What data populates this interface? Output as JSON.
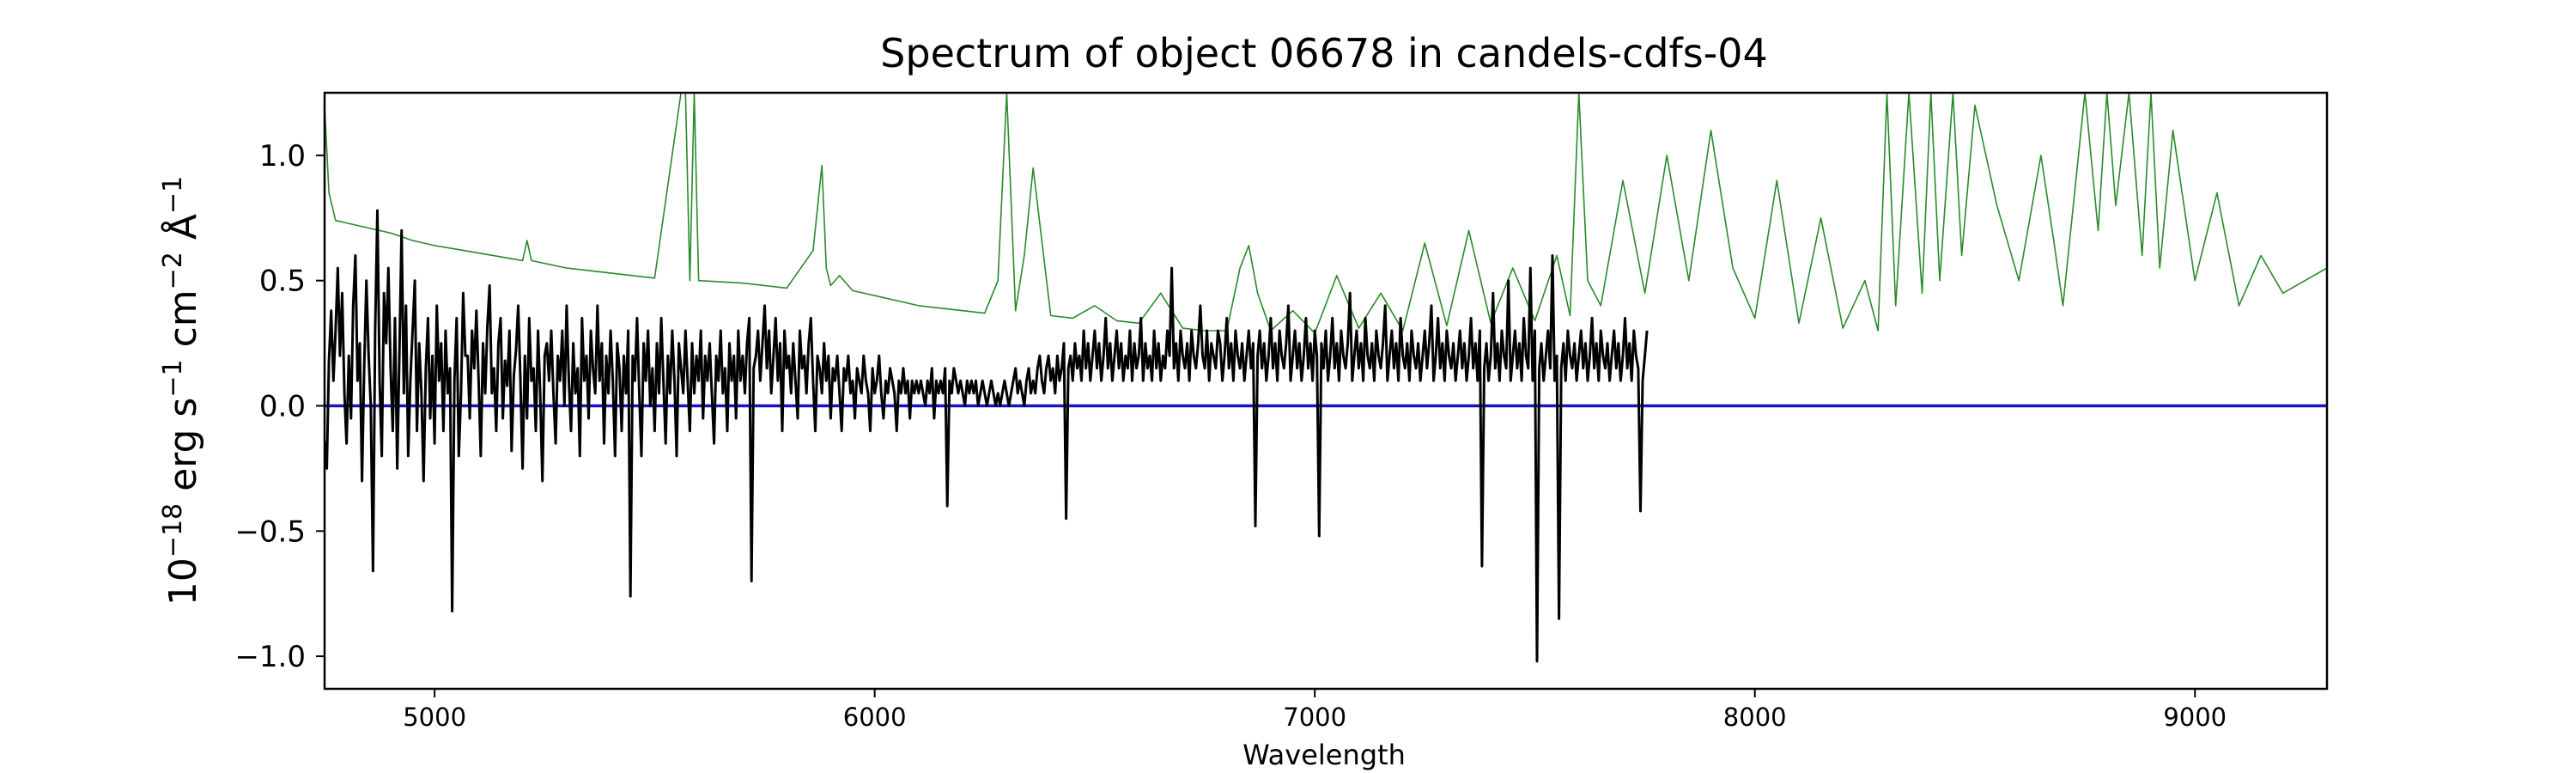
{
  "chart_data": {
    "type": "line",
    "title": "Spectrum of object 06678 in candels-cdfs-04",
    "xlabel": "Wavelength",
    "ylabel": {
      "base": "10",
      "exp1": "−18",
      "unit1": " erg s",
      "exp2": "−1",
      "unit2": " cm",
      "exp3": "−2",
      "unit3": " Å",
      "exp4": "−1"
    },
    "xlim": [
      4750,
      9300
    ],
    "ylim": [
      -1.13,
      1.25
    ],
    "xticks": [
      5000,
      6000,
      7000,
      8000,
      9000
    ],
    "xtick_labels": [
      "5000",
      "6000",
      "7000",
      "8000",
      "9000"
    ],
    "yticks": [
      -1.0,
      -0.5,
      0.0,
      0.5,
      1.0
    ],
    "ytick_labels": [
      "−1.0",
      "−0.5",
      "0.0",
      "0.5",
      "1.0"
    ],
    "grid": false,
    "legend": "none",
    "series": [
      {
        "role": "flux",
        "color": "#000000",
        "x_start": 4750,
        "x_step": 5,
        "values": [
          -0.14,
          -0.25,
          0.18,
          0.38,
          0.1,
          0.3,
          0.55,
          0.2,
          0.45,
          0.05,
          -0.15,
          0.2,
          -0.05,
          0.4,
          0.6,
          0.1,
          0.25,
          -0.3,
          0.15,
          0.5,
          0.2,
          0.0,
          -0.66,
          0.3,
          0.78,
          0.1,
          -0.2,
          0.45,
          0.25,
          0.55,
          0.15,
          -0.1,
          0.35,
          -0.25,
          0.2,
          0.7,
          0.05,
          0.4,
          -0.2,
          0.1,
          0.3,
          0.5,
          -0.1,
          0.25,
          0.05,
          -0.3,
          0.15,
          0.35,
          -0.05,
          0.2,
          -0.15,
          0.4,
          0.1,
          0.25,
          -0.1,
          0.3,
          0.05,
          0.15,
          -0.82,
          0.1,
          0.35,
          -0.2,
          0.05,
          0.45,
          0.2,
          0.2,
          -0.05,
          0.3,
          0.15,
          0.38,
          0.1,
          -0.2,
          0.25,
          0.05,
          0.32,
          0.48,
          0.05,
          0.15,
          -0.1,
          0.25,
          0.35,
          -0.05,
          0.18,
          0.08,
          0.3,
          -0.18,
          0.12,
          0.22,
          0.4,
          0.1,
          -0.25,
          0.2,
          -0.05,
          0.35,
          0.1,
          0.15,
          -0.1,
          0.3,
          0.05,
          -0.3,
          0.2,
          0.25,
          0.1,
          0.3,
          0.05,
          -0.15,
          0.2,
          0.1,
          0.3,
          0.0,
          0.4,
          0.1,
          -0.1,
          0.25,
          0.05,
          0.15,
          -0.2,
          0.35,
          0.1,
          0.2,
          -0.05,
          0.3,
          0.15,
          0.05,
          0.4,
          0.1,
          0.25,
          -0.15,
          0.2,
          0.05,
          0.3,
          0.1,
          -0.2,
          0.25,
          0.15,
          -0.1,
          0.2,
          0.05,
          0.3,
          -0.76,
          0.2,
          0.1,
          0.35,
          0.05,
          -0.2,
          0.25,
          0.1,
          0.3,
          0.0,
          0.15,
          -0.1,
          0.25,
          0.05,
          0.35,
          0.1,
          -0.15,
          0.2,
          0.05,
          0.3,
          0.1,
          -0.2,
          0.25,
          0.15,
          0.05,
          0.3,
          0.1,
          -0.1,
          0.25,
          0.05,
          0.2,
          0.1,
          0.3,
          -0.05,
          0.2,
          0.1,
          0.25,
          0.05,
          -0.15,
          0.2,
          0.1,
          0.3,
          0.05,
          0.15,
          -0.1,
          0.25,
          0.1,
          0.2,
          -0.05,
          0.3,
          0.1,
          0.2,
          0.05,
          0.25,
          0.35,
          -0.7,
          0.15,
          0.2,
          0.3,
          0.1,
          0.25,
          0.4,
          0.15,
          0.3,
          0.05,
          0.2,
          0.35,
          0.1,
          0.25,
          -0.1,
          0.3,
          0.15,
          0.2,
          0.05,
          0.25,
          0.1,
          -0.05,
          0.3,
          0.15,
          0.2,
          0.05,
          0.25,
          0.35,
          0.1,
          -0.1,
          0.2,
          0.15,
          0.05,
          0.25,
          0.1,
          0.2,
          -0.05,
          0.15,
          0.1,
          0.2,
          0.05,
          -0.1,
          0.15,
          0.1,
          0.2,
          0.05,
          0.1,
          -0.05,
          0.15,
          0.1,
          0.05,
          0.2,
          0.1,
          0.05,
          -0.1,
          0.15,
          0.05,
          0.1,
          0.2,
          0.05,
          -0.05,
          0.1,
          0.05,
          0.15,
          0.1,
          0.05,
          -0.1,
          0.1,
          0.05,
          0.15,
          0.05,
          0.1,
          -0.05,
          0.1,
          0.05,
          0.1,
          0.05,
          0.1,
          0.05,
          0.0,
          0.1,
          0.05,
          0.15,
          -0.05,
          0.1,
          0.05,
          0.1,
          0.05,
          0.15,
          -0.4,
          0.1,
          0.05,
          0.15,
          0.1,
          0.05,
          0.1,
          0.05,
          0.0,
          0.1,
          0.05,
          0.1,
          0.05,
          0.1,
          0.0,
          0.05,
          0.1,
          0.05,
          0.0,
          0.05,
          0.1,
          0.05,
          0.0,
          0.05,
          0.0,
          0.05,
          0.1,
          0.05,
          0.0,
          0.05,
          0.1,
          0.15,
          0.05,
          0.1,
          0.05,
          0.0,
          0.1,
          0.15,
          0.05,
          0.1,
          0.05,
          0.15,
          0.2,
          0.1,
          0.05,
          0.15,
          0.2,
          0.1,
          0.15,
          0.05,
          0.2,
          0.1,
          0.15,
          0.25,
          -0.45,
          0.15,
          0.2,
          0.1,
          0.25,
          0.15,
          0.2,
          0.1,
          0.3,
          0.15,
          0.25,
          0.1,
          0.2,
          0.3,
          0.15,
          0.25,
          0.1,
          0.2,
          0.35,
          0.15,
          0.25,
          0.1,
          0.2,
          0.3,
          0.15,
          0.25,
          0.1,
          0.2,
          0.15,
          0.3,
          0.1,
          0.25,
          0.15,
          0.2,
          0.35,
          0.1,
          0.25,
          0.15,
          0.2,
          0.1,
          0.3,
          0.15,
          0.25,
          0.1,
          0.2,
          0.15,
          0.3,
          0.2,
          0.55,
          0.15,
          0.25,
          0.1,
          0.3,
          0.2,
          0.15,
          0.25,
          0.1,
          0.3,
          0.2,
          0.15,
          0.25,
          0.4,
          0.2,
          0.15,
          0.3,
          0.1,
          0.25,
          0.2,
          0.15,
          0.3,
          0.25,
          0.1,
          0.2,
          0.35,
          0.15,
          0.25,
          0.1,
          0.3,
          0.2,
          0.15,
          0.25,
          0.1,
          0.2,
          0.3,
          0.15,
          0.25,
          -0.48,
          0.2,
          0.3,
          0.15,
          0.25,
          0.1,
          0.2,
          0.35,
          0.15,
          0.25,
          0.1,
          0.3,
          0.2,
          0.15,
          0.25,
          0.4,
          0.1,
          0.2,
          0.3,
          0.15,
          0.25,
          0.1,
          0.2,
          0.35,
          0.15,
          0.25,
          0.1,
          0.3,
          0.2,
          -0.52,
          0.25,
          0.15,
          0.3,
          0.1,
          0.2,
          0.35,
          0.15,
          0.25,
          0.1,
          0.3,
          0.2,
          0.15,
          0.25,
          0.45,
          0.1,
          0.2,
          0.3,
          0.15,
          0.25,
          0.1,
          0.35,
          0.2,
          0.15,
          0.25,
          0.1,
          0.3,
          0.2,
          0.15,
          0.25,
          0.4,
          0.1,
          0.2,
          0.3,
          0.15,
          0.25,
          0.1,
          0.35,
          0.2,
          0.15,
          0.25,
          0.1,
          0.3,
          0.2,
          0.15,
          0.25,
          0.1,
          0.2,
          0.3,
          0.15,
          0.25,
          0.4,
          0.1,
          0.2,
          0.35,
          0.15,
          0.25,
          0.1,
          0.3,
          0.2,
          0.15,
          0.25,
          0.1,
          0.2,
          0.3,
          0.15,
          0.25,
          0.1,
          0.2,
          0.35,
          0.15,
          0.25,
          0.1,
          0.3,
          -0.64,
          0.15,
          0.25,
          0.1,
          0.2,
          0.45,
          0.15,
          0.25,
          0.1,
          0.3,
          0.2,
          0.15,
          0.5,
          0.1,
          0.2,
          0.3,
          0.15,
          0.25,
          0.1,
          0.35,
          0.2,
          0.15,
          0.55,
          0.1,
          0.3,
          -1.02,
          0.15,
          0.25,
          0.1,
          0.2,
          0.3,
          0.15,
          0.6,
          0.1,
          0.2,
          -0.85,
          0.15,
          0.25,
          0.1,
          0.3,
          0.2,
          0.15,
          0.25,
          0.1,
          0.2,
          0.3,
          0.15,
          0.25,
          0.1,
          0.2,
          0.35,
          0.15,
          0.25,
          0.1,
          0.3,
          0.2,
          0.15,
          0.25,
          0.1,
          0.2,
          0.3,
          0.15,
          0.25,
          0.1,
          0.2,
          0.35,
          0.15,
          0.25,
          0.1,
          0.3,
          0.2,
          0.15,
          -0.42,
          0.1,
          0.2,
          0.3
        ]
      },
      {
        "role": "error",
        "color": "#2a8a2a",
        "x": [
          4750,
          4760,
          4775,
          4800,
          4850,
          4900,
          4950,
          5000,
          5100,
          5200,
          5210,
          5220,
          5300,
          5400,
          5500,
          5560,
          5570,
          5580,
          5590,
          5600,
          5700,
          5800,
          5860,
          5880,
          5890,
          5900,
          5920,
          5950,
          6000,
          6050,
          6100,
          6150,
          6200,
          6250,
          6280,
          6300,
          6320,
          6340,
          6360,
          6400,
          6450,
          6500,
          6550,
          6600,
          6650,
          6700,
          6750,
          6800,
          6830,
          6850,
          6870,
          6900,
          6950,
          7000,
          7050,
          7100,
          7150,
          7200,
          7250,
          7300,
          7350,
          7400,
          7450,
          7500,
          7550,
          7580,
          7600,
          7620,
          7650,
          7700,
          7750,
          7800,
          7850,
          7900,
          7950,
          8000,
          8050,
          8100,
          8150,
          8200,
          8250,
          8280,
          8300,
          8320,
          8350,
          8380,
          8400,
          8420,
          8450,
          8470,
          8500,
          8550,
          8600,
          8650,
          8680,
          8700,
          8750,
          8780,
          8800,
          8820,
          8850,
          8880,
          8900,
          8920,
          8950,
          9000,
          9050,
          9100,
          9150,
          9200,
          9250,
          9300
        ],
        "values": [
          1.2,
          0.85,
          0.74,
          0.73,
          0.71,
          0.69,
          0.66,
          0.64,
          0.61,
          0.58,
          0.66,
          0.58,
          0.55,
          0.53,
          0.51,
          1.25,
          1.25,
          0.5,
          1.25,
          0.5,
          0.49,
          0.47,
          0.62,
          0.96,
          0.55,
          0.48,
          0.52,
          0.46,
          0.44,
          0.42,
          0.4,
          0.39,
          0.38,
          0.37,
          0.5,
          1.25,
          0.38,
          0.6,
          0.95,
          0.36,
          0.35,
          0.4,
          0.34,
          0.33,
          0.45,
          0.31,
          0.3,
          0.3,
          0.55,
          0.64,
          0.45,
          0.3,
          0.38,
          0.29,
          0.52,
          0.31,
          0.45,
          0.3,
          0.65,
          0.32,
          0.7,
          0.33,
          0.55,
          0.34,
          0.6,
          0.36,
          1.25,
          0.5,
          0.4,
          0.9,
          0.45,
          1.0,
          0.5,
          1.1,
          0.55,
          0.35,
          0.9,
          0.33,
          0.75,
          0.31,
          0.5,
          0.3,
          1.25,
          0.4,
          1.25,
          0.45,
          1.25,
          0.5,
          1.25,
          0.6,
          1.2,
          0.8,
          0.5,
          1.0,
          0.65,
          0.4,
          1.25,
          0.7,
          1.25,
          0.8,
          1.25,
          0.6,
          1.25,
          0.55,
          1.1,
          0.5,
          0.85,
          0.4,
          0.6,
          0.45,
          0.5,
          0.55
        ]
      },
      {
        "role": "model",
        "color": "#1414c8",
        "x": [
          4750,
          9300
        ],
        "values": [
          0.0,
          0.0
        ]
      }
    ]
  }
}
